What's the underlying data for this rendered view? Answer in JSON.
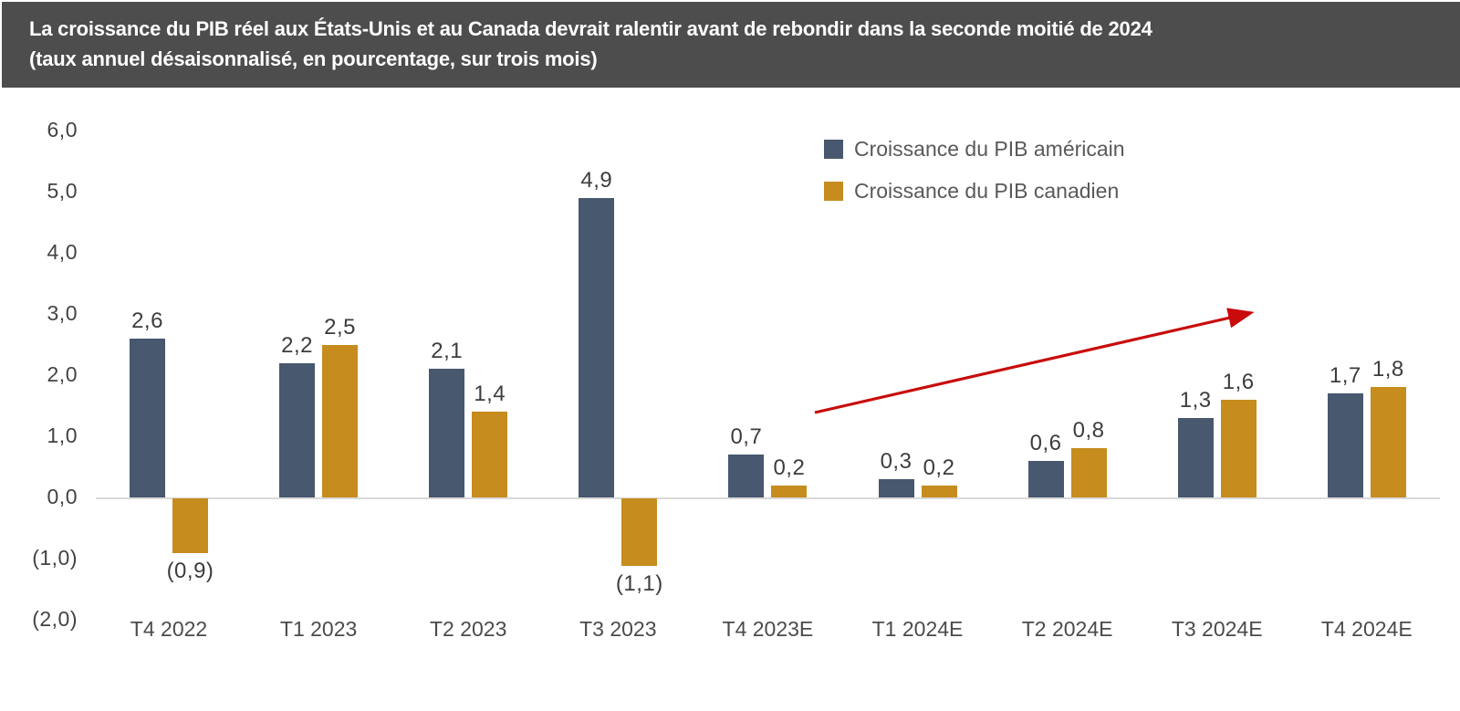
{
  "header": {
    "title_line1": "La croissance du PIB réel aux États-Unis et au Canada devrait ralentir avant de rebondir dans la seconde moitié de 2024",
    "title_line2": "(taux annuel désaisonnalisé, en pourcentage, sur trois mois)",
    "background": "#4d4d4d",
    "text_color": "#ffffff"
  },
  "chart_data": {
    "type": "bar",
    "title": "La croissance du PIB réel aux États-Unis et au Canada devrait ralentir avant de rebondir dans la seconde moitié de 2024",
    "subtitle": "(taux annuel désaisonnalisé, en pourcentage, sur trois mois)",
    "categories": [
      "T4 2022",
      "T1 2023",
      "T2 2023",
      "T3 2023",
      "T4 2023E",
      "T1 2024E",
      "T2 2024E",
      "T3 2024E",
      "T4 2024E"
    ],
    "series": [
      {
        "name": "Croissance du PIB américain",
        "color": "#47586f",
        "values": [
          2.6,
          2.2,
          2.1,
          4.9,
          0.7,
          0.3,
          0.6,
          1.3,
          1.7
        ],
        "labels": [
          "2,6",
          "2,2",
          "2,1",
          "4,9",
          "0,7",
          "0,3",
          "0,6",
          "1,3",
          "1,7"
        ]
      },
      {
        "name": "Croissance du PIB canadien",
        "color": "#c68c1d",
        "values": [
          -0.9,
          2.5,
          1.4,
          -1.1,
          0.2,
          0.2,
          0.8,
          1.6,
          1.8
        ],
        "labels": [
          "(0,9)",
          "2,5",
          "1,4",
          "(1,1)",
          "0,2",
          "0,2",
          "0,8",
          "1,6",
          "1,8"
        ]
      }
    ],
    "y_axis": {
      "min": -2,
      "max": 6,
      "ticks": [
        {
          "value": 6,
          "label": "6,0"
        },
        {
          "value": 5,
          "label": "5,0"
        },
        {
          "value": 4,
          "label": "4,0"
        },
        {
          "value": 3,
          "label": "3,0"
        },
        {
          "value": 2,
          "label": "2,0"
        },
        {
          "value": 1,
          "label": "1,0"
        },
        {
          "value": 0,
          "label": "0,0"
        },
        {
          "value": -1,
          "label": "(1,0)"
        },
        {
          "value": -2,
          "label": "(2,0)"
        }
      ]
    },
    "grid": false,
    "legend_position": "top-right",
    "annotation": {
      "type": "arrow",
      "color": "#c90b0b",
      "description": "red upward trend arrow spanning the forecast quarters (T4 2023E to T4 2024E)"
    }
  }
}
